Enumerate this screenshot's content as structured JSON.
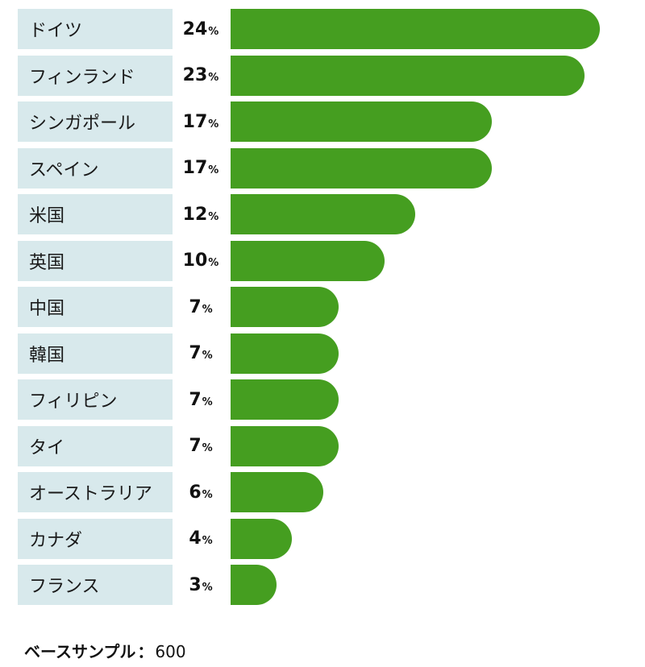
{
  "chart_data": {
    "type": "bar",
    "orientation": "horizontal",
    "categories": [
      "ドイツ",
      "フィンランド",
      "シンガポール",
      "スペイン",
      "米国",
      "英国",
      "中国",
      "韓国",
      "フィリピン",
      "タイ",
      "オーストラリア",
      "カナダ",
      "フランス"
    ],
    "values": [
      24,
      23,
      17,
      17,
      12,
      10,
      7,
      7,
      7,
      7,
      6,
      4,
      3
    ],
    "unit": "%",
    "xlim": [
      0,
      24
    ],
    "bar_color": "#459e20",
    "label_bg_color": "#d8e9ec",
    "grid": false
  },
  "footer": {
    "base_label": "ベースサンプル",
    "separator": "：",
    "base_value": "600"
  }
}
